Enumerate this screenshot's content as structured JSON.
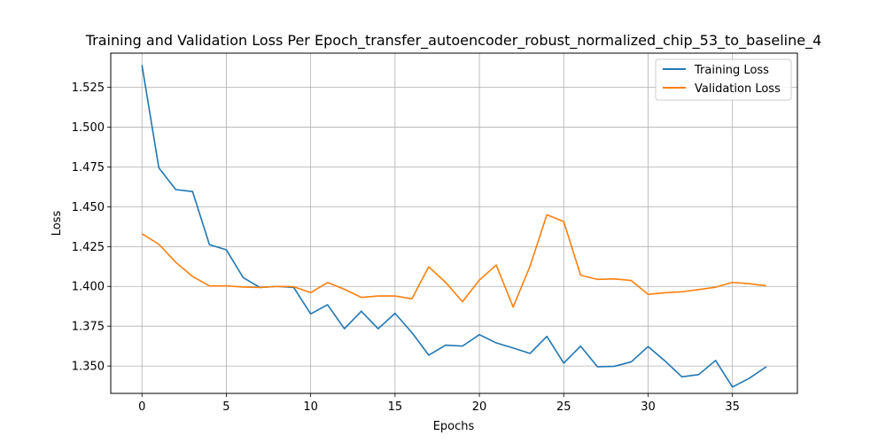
{
  "chart_data": {
    "type": "line",
    "title": "Training and Validation Loss Per Epoch_transfer_autoencoder_robust_normalized_chip_53_to_baseline_4",
    "xlabel": "Epochs",
    "ylabel": "Loss",
    "xlim": [
      -1.85,
      38.85
    ],
    "ylim": [
      1.3328,
      1.5465
    ],
    "xticks": [
      0,
      5,
      10,
      15,
      20,
      25,
      30,
      35
    ],
    "yticks": [
      1.35,
      1.375,
      1.4,
      1.425,
      1.45,
      1.475,
      1.5,
      1.525
    ],
    "ytick_labels": [
      "1.350",
      "1.375",
      "1.400",
      "1.425",
      "1.450",
      "1.475",
      "1.500",
      "1.525"
    ],
    "grid": true,
    "legend_position": "top-right",
    "x": [
      0,
      1,
      2,
      3,
      4,
      5,
      6,
      7,
      8,
      9,
      10,
      11,
      12,
      13,
      14,
      15,
      16,
      17,
      18,
      19,
      20,
      21,
      22,
      23,
      24,
      25,
      26,
      27,
      28,
      29,
      30,
      31,
      32,
      33,
      34,
      35,
      36,
      37
    ],
    "series": [
      {
        "name": "Training Loss",
        "color": "#1f77b4",
        "values": [
          1.539,
          1.4745,
          1.4608,
          1.4596,
          1.4262,
          1.423,
          1.4055,
          1.3993,
          1.4,
          1.3993,
          1.3827,
          1.3885,
          1.3734,
          1.3844,
          1.3734,
          1.3831,
          1.371,
          1.3568,
          1.3631,
          1.3625,
          1.3697,
          1.3645,
          1.3613,
          1.3579,
          1.3686,
          1.3518,
          1.3625,
          1.3495,
          1.3498,
          1.3526,
          1.3622,
          1.3532,
          1.3432,
          1.3446,
          1.3535,
          1.3368,
          1.3423,
          1.3495
        ]
      },
      {
        "name": "Validation Loss",
        "color": "#ff7f0e",
        "values": [
          1.433,
          1.4265,
          1.4152,
          1.4062,
          1.4003,
          1.4003,
          1.3996,
          1.3993,
          1.4,
          1.3998,
          1.3961,
          1.4024,
          1.3982,
          1.3931,
          1.394,
          1.394,
          1.3922,
          1.4123,
          1.4025,
          1.3904,
          1.404,
          1.4134,
          1.387,
          1.4126,
          1.445,
          1.4407,
          1.4071,
          1.4044,
          1.4047,
          1.4037,
          1.395,
          1.396,
          1.3966,
          1.398,
          1.3995,
          1.4025,
          1.4017,
          1.4004
        ]
      }
    ]
  }
}
